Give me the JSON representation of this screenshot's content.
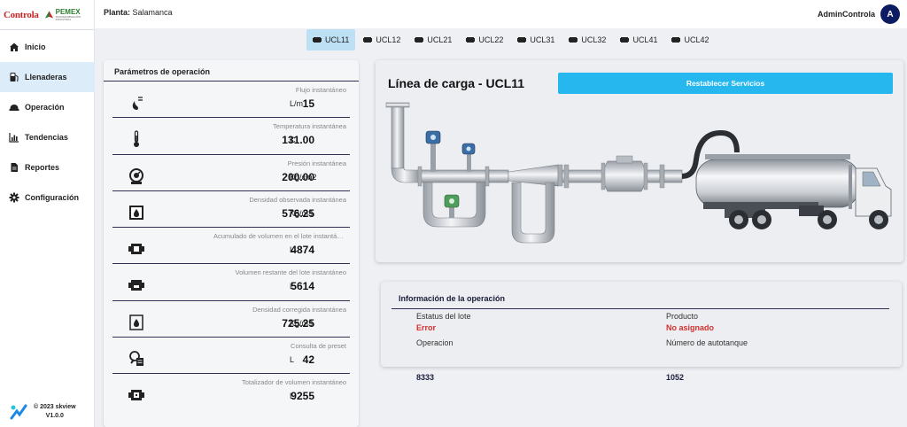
{
  "brand": {
    "logo_left": "Controla",
    "logo_right": "PEMEX",
    "logo_right_sub": "TRANSFORMACIÓN INDUSTRIAL"
  },
  "sidebar": {
    "items": [
      {
        "label": "Inicio",
        "icon": "home-icon",
        "active": false
      },
      {
        "label": "Llenaderas",
        "icon": "fuel-pump-icon",
        "active": true
      },
      {
        "label": "Operación",
        "icon": "hard-hat-icon",
        "active": false
      },
      {
        "label": "Tendencias",
        "icon": "bar-chart-icon",
        "active": false
      },
      {
        "label": "Reportes",
        "icon": "document-icon",
        "active": false
      },
      {
        "label": "Configuración",
        "icon": "gear-icon",
        "active": false
      }
    ],
    "footer": {
      "copyright": "© 2023 skview",
      "version": "V1.0.0"
    }
  },
  "topbar": {
    "planta_label": "Planta:",
    "planta_value": "Salamanca",
    "user_name": "AdminControla",
    "avatar_initial": "A"
  },
  "tabs": [
    {
      "label": "UCL11",
      "active": true
    },
    {
      "label": "UCL12",
      "active": false
    },
    {
      "label": "UCL21",
      "active": false
    },
    {
      "label": "UCL22",
      "active": false
    },
    {
      "label": "UCL31",
      "active": false
    },
    {
      "label": "UCL32",
      "active": false
    },
    {
      "label": "UCL41",
      "active": false
    },
    {
      "label": "UCL42",
      "active": false
    }
  ],
  "params": {
    "title": "Parámetros de operación",
    "rows": [
      {
        "label": "Flujo instantáneo",
        "value": "15",
        "unit": "L/m",
        "icon": "flow-drop-icon"
      },
      {
        "label": "Temperatura instantánea",
        "value": "131.00",
        "unit": "C",
        "icon": "thermometer-icon"
      },
      {
        "label": "Presión instantánea",
        "value": "200.00",
        "unit": "Kg/cm2",
        "icon": "pressure-gauge-icon"
      },
      {
        "label": "Densidad observada instantánea",
        "value": "576.25",
        "unit": "Kg/m3",
        "icon": "density-drop-icon"
      },
      {
        "label": "Acumulado de volumen en el lote instantáneo",
        "value": "4874",
        "unit": "L",
        "icon": "volume-accumulated-icon"
      },
      {
        "label": "Volumen restante del lote instantáneo",
        "value": "5614",
        "unit": "L",
        "icon": "volume-remaining-icon"
      },
      {
        "label": "Densidad corregida instantánea",
        "value": "725.25",
        "unit": "Kg/m3",
        "icon": "density-corrected-icon"
      },
      {
        "label": "Consulta de preset",
        "value": "42",
        "unit": "L",
        "icon": "preset-search-icon"
      },
      {
        "label": "Totalizador de volumen instantáneo",
        "value": "9255",
        "unit": "L",
        "icon": "volume-total-icon"
      }
    ]
  },
  "line": {
    "title": "Línea de carga - UCL11",
    "reset_button": "Restablecer Servicios"
  },
  "info": {
    "title": "Información de la operación",
    "fields": [
      {
        "label": "Estatus del lote",
        "value": "Error",
        "style": "err"
      },
      {
        "label": "Producto",
        "value": "No asignado",
        "style": "err"
      },
      {
        "label": "Operacion",
        "value": "8333",
        "style": "nav"
      },
      {
        "label": "Número de autotanque",
        "value": "1052",
        "style": "nav"
      }
    ]
  },
  "colors": {
    "accent": "#25b7ee",
    "active_tab": "#bde0f5",
    "active_nav": "#dcecf8",
    "error": "#d32f2f",
    "navy": "#0d1b63"
  }
}
